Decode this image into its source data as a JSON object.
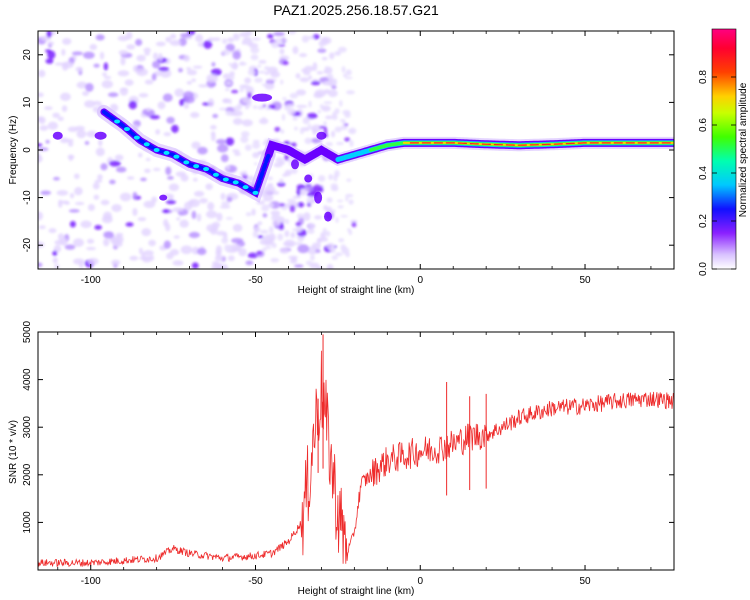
{
  "chart_data": [
    {
      "type": "heatmap",
      "title": "PAZ1.2025.256.18.57.G21",
      "xlabel": "Height of straight line (km)",
      "ylabel": "Frequency (Hz)",
      "xlim": [
        -116,
        77
      ],
      "ylim": [
        -25,
        25
      ],
      "xticks": [
        -100,
        -50,
        0,
        50
      ],
      "yticks": [
        -20,
        -10,
        0,
        10,
        20
      ],
      "colorbar": {
        "label": "Normalized spectral amplitude",
        "range": [
          0,
          1
        ],
        "ticks": [
          "0.0",
          "0.2",
          "0.4",
          "0.6",
          "0.8"
        ],
        "colormap": "rainbow (white-violet-blue-cyan-green-yellow-red-magenta)"
      },
      "ridge": {
        "description": "dominant frequency track",
        "x": [
          -96,
          -90,
          -85,
          -80,
          -75,
          -70,
          -65,
          -60,
          -55,
          -50,
          -45,
          -40,
          -35,
          -30,
          -25,
          -20,
          -15,
          -10,
          -5,
          0,
          10,
          20,
          30,
          40,
          50,
          60,
          77
        ],
        "y": [
          8,
          5,
          2,
          0,
          -1,
          -3,
          -4,
          -6,
          -7,
          -9,
          1,
          0,
          -2,
          0,
          -2,
          -1,
          0,
          1,
          1.5,
          1.5,
          1.5,
          1.2,
          1,
          1.2,
          1.5,
          1.5,
          1.5
        ]
      }
    },
    {
      "type": "line",
      "xlabel": "Height of straight line (km)",
      "ylabel": "SNR (10 * v/v)",
      "xlim": [
        -116,
        77
      ],
      "ylim": [
        0,
        5000
      ],
      "xticks": [
        -100,
        -50,
        0,
        50
      ],
      "yticks": [
        1000,
        2000,
        3000,
        4000,
        5000
      ],
      "color": "#ee2b2b",
      "envelope": {
        "x": [
          -116,
          -100,
          -80,
          -75,
          -70,
          -60,
          -50,
          -45,
          -40,
          -36,
          -34,
          -32,
          -30,
          -28,
          -25,
          -22,
          -20,
          -18,
          -15,
          -10,
          -5,
          0,
          5,
          10,
          15,
          20,
          25,
          30,
          40,
          50,
          60,
          70,
          77
        ],
        "y": [
          150,
          150,
          250,
          450,
          350,
          250,
          300,
          350,
          600,
          1000,
          1800,
          3000,
          3800,
          2800,
          1200,
          400,
          800,
          1800,
          2000,
          2300,
          2400,
          2500,
          2550,
          2650,
          2800,
          2850,
          3000,
          3200,
          3400,
          3450,
          3550,
          3600,
          3550
        ]
      },
      "spikes": [
        {
          "x": -29.5,
          "y": 4950
        },
        {
          "x": -31,
          "y": 3600
        },
        {
          "x": 8,
          "y": 3950
        },
        {
          "x": 15,
          "y": 3650
        },
        {
          "x": 20,
          "y": 3700
        }
      ]
    }
  ]
}
